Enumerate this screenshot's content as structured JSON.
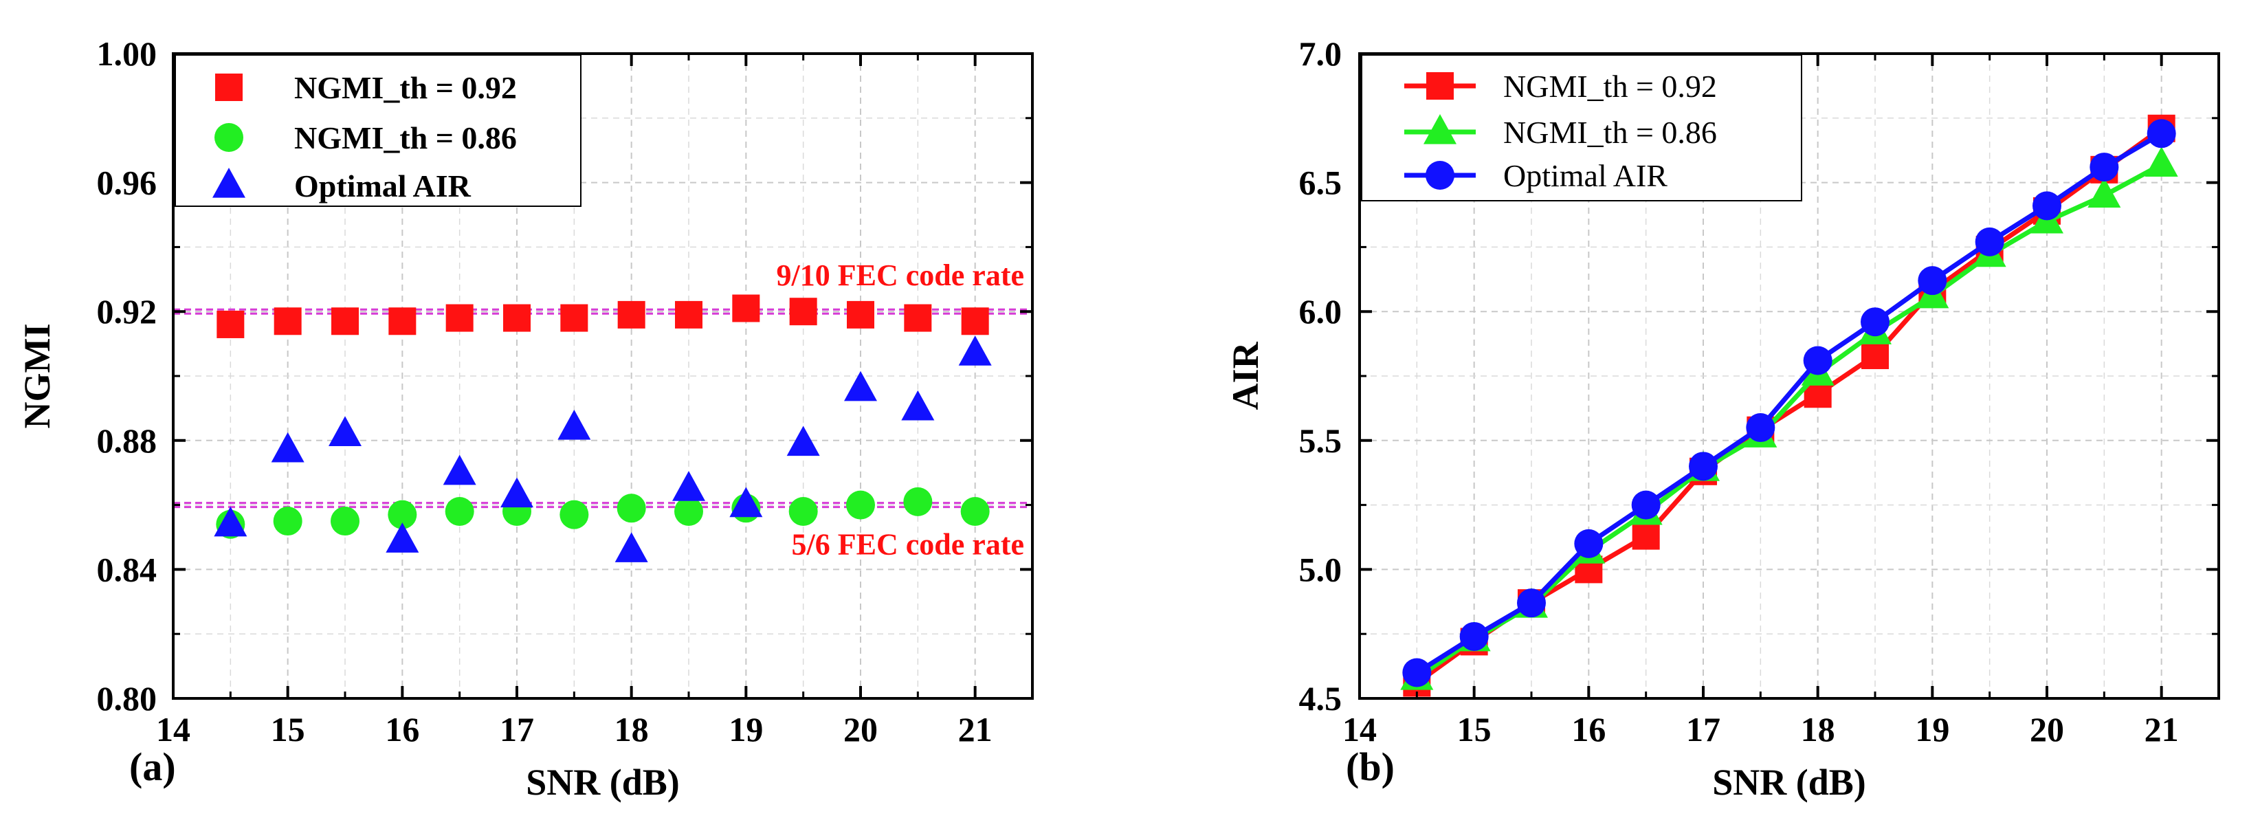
{
  "figure": {
    "panel_a_label": "(a)",
    "panel_b_label": "(b)"
  },
  "colors": {
    "red": "#ff1212",
    "green": "#22ee22",
    "blue": "#1111ff",
    "threshold": "#d63cd6",
    "annotation": "#ff1010"
  },
  "chart_data": [
    {
      "type": "scatter",
      "panel": "(a)",
      "xlabel": "SNR (dB)",
      "ylabel": "NGMI",
      "xlim": [
        14,
        21.5
      ],
      "ylim": [
        0.8,
        1.0
      ],
      "xticks": [
        14,
        15,
        16,
        17,
        18,
        19,
        20,
        21
      ],
      "xtick_labels": [
        "14",
        "15",
        "16",
        "17",
        "18",
        "19",
        "20",
        "21"
      ],
      "yticks": [
        0.8,
        0.84,
        0.88,
        0.92,
        0.96,
        1.0
      ],
      "ytick_labels": [
        "0.80",
        "0.84",
        "0.88",
        "0.92",
        "0.96",
        "1.00"
      ],
      "grid": true,
      "legend_position": "top-left",
      "x": [
        14.5,
        15,
        15.5,
        16,
        16.5,
        17,
        17.5,
        18,
        18.5,
        19,
        19.5,
        20,
        20.5,
        21
      ],
      "series": [
        {
          "name": "NGMI_th = 0.92",
          "marker": "square",
          "color": "red",
          "values": [
            0.916,
            0.917,
            0.917,
            0.917,
            0.918,
            0.918,
            0.918,
            0.919,
            0.919,
            0.921,
            0.92,
            0.919,
            0.918,
            0.917
          ]
        },
        {
          "name": "NGMI_th = 0.86",
          "marker": "circle",
          "color": "green",
          "values": [
            0.854,
            0.855,
            0.855,
            0.857,
            0.858,
            0.858,
            0.857,
            0.859,
            0.858,
            0.859,
            0.858,
            0.86,
            0.861,
            0.858
          ]
        },
        {
          "name": "Optimal AIR",
          "marker": "triangle",
          "color": "blue",
          "values": [
            0.854,
            0.877,
            0.882,
            0.849,
            0.87,
            0.863,
            0.884,
            0.846,
            0.865,
            0.86,
            0.879,
            0.896,
            0.89,
            0.907
          ]
        }
      ],
      "threshold_lines": [
        {
          "value": 0.92,
          "label": "9/10 FEC code rate",
          "label_side": "above"
        },
        {
          "value": 0.86,
          "label": "5/6 FEC code rate",
          "label_side": "below"
        }
      ]
    },
    {
      "type": "line",
      "panel": "(b)",
      "xlabel": "SNR (dB)",
      "ylabel": "AIR",
      "xlim": [
        14,
        21.5
      ],
      "ylim": [
        4.5,
        7.0
      ],
      "xticks": [
        14,
        15,
        16,
        17,
        18,
        19,
        20,
        21
      ],
      "xtick_labels": [
        "14",
        "15",
        "16",
        "17",
        "18",
        "19",
        "20",
        "21"
      ],
      "yticks": [
        4.5,
        5.0,
        5.5,
        6.0,
        6.5,
        7.0
      ],
      "ytick_labels": [
        "4.5",
        "5.0",
        "5.5",
        "6.0",
        "6.5",
        "7.0"
      ],
      "grid": true,
      "legend_position": "top-left",
      "x": [
        14.5,
        15,
        15.5,
        16,
        16.5,
        17,
        17.5,
        18,
        18.5,
        19,
        19.5,
        20,
        20.5,
        21
      ],
      "series": [
        {
          "name": "NGMI_th = 0.92",
          "marker": "square",
          "color": "red",
          "values": [
            4.56,
            4.72,
            4.87,
            5.0,
            5.13,
            5.38,
            5.54,
            5.68,
            5.83,
            6.08,
            6.24,
            6.39,
            6.55,
            6.71
          ]
        },
        {
          "name": "NGMI_th = 0.86",
          "marker": "triangle",
          "color": "green",
          "values": [
            4.58,
            4.73,
            4.86,
            5.07,
            5.22,
            5.39,
            5.52,
            5.76,
            5.92,
            6.06,
            6.22,
            6.35,
            6.45,
            6.57
          ]
        },
        {
          "name": "Optimal AIR",
          "marker": "circle",
          "color": "blue",
          "values": [
            4.6,
            4.74,
            4.87,
            5.1,
            5.25,
            5.4,
            5.55,
            5.81,
            5.96,
            6.12,
            6.27,
            6.41,
            6.56,
            6.69
          ]
        }
      ]
    }
  ]
}
